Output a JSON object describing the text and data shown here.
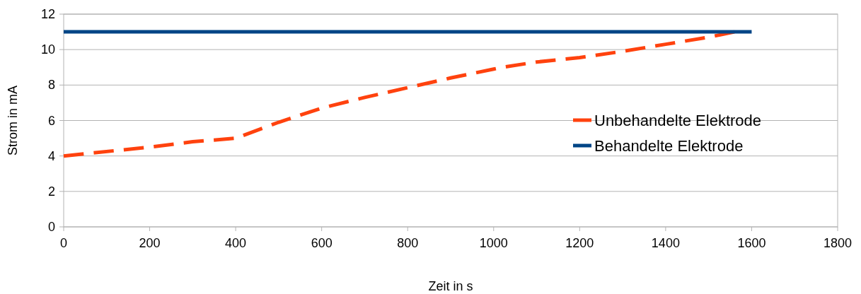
{
  "chart_data": {
    "type": "line",
    "xlabel": "Zeit in s",
    "ylabel": "Strom in mA",
    "xlim": [
      0,
      1800
    ],
    "xticks": [
      0,
      200,
      400,
      600,
      800,
      1000,
      1200,
      1400,
      1600,
      1800
    ],
    "ylim": [
      0,
      12
    ],
    "yticks": [
      0,
      2,
      4,
      6,
      8,
      10,
      12
    ],
    "grid": "y",
    "legend": "right",
    "series": [
      {
        "name": "Unbehandelte Elektrode",
        "color": "#ff420e",
        "line_style": "dashed",
        "x": [
          0,
          200,
          300,
          400,
          500,
          600,
          700,
          800,
          900,
          1000,
          1020,
          1100,
          1200,
          1300,
          1400,
          1500,
          1560
        ],
        "values": [
          4,
          4.5,
          4.8,
          5.0,
          5.9,
          6.7,
          7.3,
          7.85,
          8.4,
          8.9,
          9.0,
          9.3,
          9.55,
          9.9,
          10.3,
          10.7,
          11.0
        ]
      },
      {
        "name": "Behandelte Elektrode",
        "color": "#004586",
        "line_style": "solid",
        "x": [
          0,
          1600
        ],
        "values": [
          11,
          11
        ]
      }
    ]
  }
}
